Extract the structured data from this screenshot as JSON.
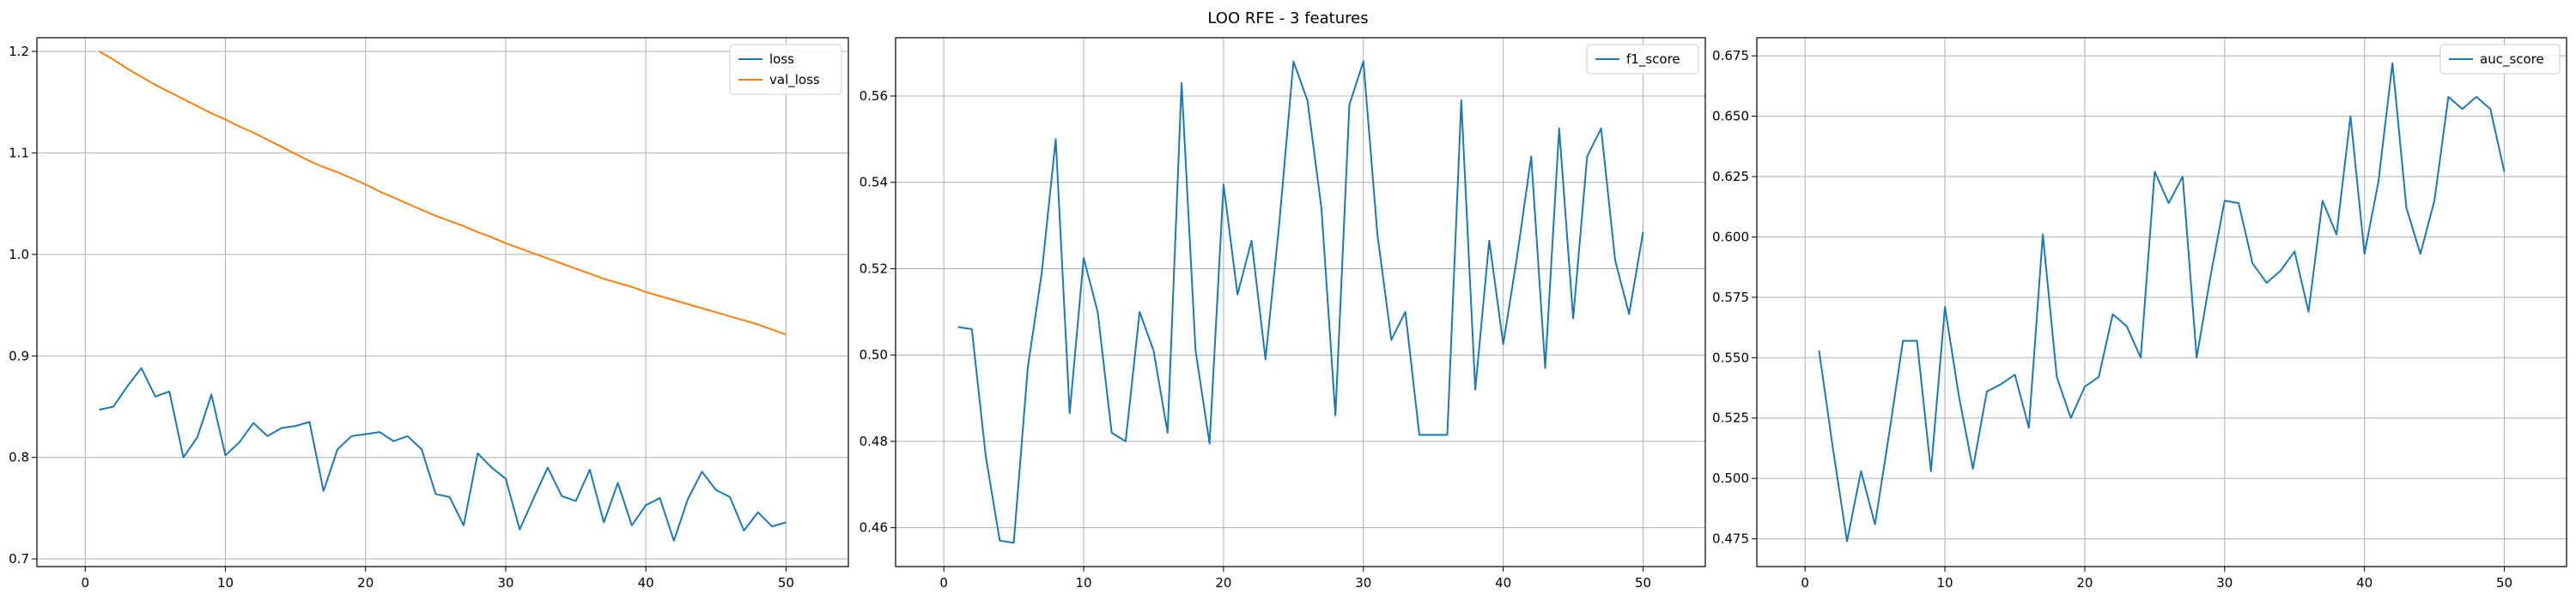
{
  "figure": {
    "title": "LOO RFE - 3 features"
  },
  "chart_data": [
    {
      "type": "line",
      "title": "",
      "xlabel": "",
      "ylabel": "",
      "xlim": [
        -3.45,
        54.45
      ],
      "ylim": [
        0.6925,
        1.2135
      ],
      "xticks": [
        0,
        10,
        20,
        30,
        40,
        50
      ],
      "yticks": [
        0.7,
        0.8,
        0.9,
        1.0,
        1.1,
        1.2
      ],
      "ytick_labels": [
        "0.7",
        "0.8",
        "0.9",
        "1.0",
        "1.1",
        "1.2"
      ],
      "grid": true,
      "legend": "top-right",
      "x": [
        1,
        2,
        3,
        4,
        5,
        6,
        7,
        8,
        9,
        10,
        11,
        12,
        13,
        14,
        15,
        16,
        17,
        18,
        19,
        20,
        21,
        22,
        23,
        24,
        25,
        26,
        27,
        28,
        29,
        30,
        31,
        32,
        33,
        34,
        35,
        36,
        37,
        38,
        39,
        40,
        41,
        42,
        43,
        44,
        45,
        46,
        47,
        48,
        49,
        50
      ],
      "series": [
        {
          "name": "loss",
          "color": "#1f77b4",
          "values": [
            0.847,
            0.85,
            0.87,
            0.888,
            0.86,
            0.865,
            0.8,
            0.82,
            0.862,
            0.802,
            0.815,
            0.834,
            0.821,
            0.829,
            0.831,
            0.835,
            0.767,
            0.808,
            0.821,
            0.823,
            0.825,
            0.816,
            0.821,
            0.808,
            0.764,
            0.761,
            0.733,
            0.804,
            0.79,
            0.779,
            0.729,
            0.76,
            0.79,
            0.762,
            0.757,
            0.788,
            0.736,
            0.775,
            0.733,
            0.753,
            0.76,
            0.718,
            0.759,
            0.786,
            0.768,
            0.761,
            0.728,
            0.746,
            0.732,
            0.736
          ]
        },
        {
          "name": "val_loss",
          "color": "#ff7f0e",
          "values": [
            1.2,
            1.192,
            1.183,
            1.175,
            1.167,
            1.16,
            1.153,
            1.146,
            1.139,
            1.133,
            1.126,
            1.12,
            1.113,
            1.106,
            1.099,
            1.092,
            1.086,
            1.081,
            1.075,
            1.069,
            1.062,
            1.056,
            1.05,
            1.044,
            1.038,
            1.033,
            1.028,
            1.022,
            1.017,
            1.011,
            1.006,
            1.001,
            0.996,
            0.991,
            0.986,
            0.981,
            0.976,
            0.972,
            0.968,
            0.963,
            0.959,
            0.955,
            0.951,
            0.947,
            0.943,
            0.939,
            0.935,
            0.931,
            0.926,
            0.921
          ]
        }
      ]
    },
    {
      "type": "line",
      "title": "",
      "xlabel": "",
      "ylabel": "",
      "xlim": [
        -3.45,
        54.45
      ],
      "ylim": [
        0.451,
        0.5735
      ],
      "xticks": [
        0,
        10,
        20,
        30,
        40,
        50
      ],
      "yticks": [
        0.46,
        0.48,
        0.5,
        0.52,
        0.54,
        0.56
      ],
      "ytick_labels": [
        "0.46",
        "0.48",
        "0.50",
        "0.52",
        "0.54",
        "0.56"
      ],
      "grid": true,
      "legend": "top-right",
      "x": [
        1,
        2,
        3,
        4,
        5,
        6,
        7,
        8,
        9,
        10,
        11,
        12,
        13,
        14,
        15,
        16,
        17,
        18,
        19,
        20,
        21,
        22,
        23,
        24,
        25,
        26,
        27,
        28,
        29,
        30,
        31,
        32,
        33,
        34,
        35,
        36,
        37,
        38,
        39,
        40,
        41,
        42,
        43,
        44,
        45,
        46,
        47,
        48,
        49,
        50
      ],
      "series": [
        {
          "name": "f1_score",
          "color": "#1f77b4",
          "values": [
            0.5065,
            0.506,
            0.4765,
            0.457,
            0.4565,
            0.497,
            0.519,
            0.55,
            0.4865,
            0.5225,
            0.51,
            0.482,
            0.48,
            0.51,
            0.501,
            0.482,
            0.563,
            0.501,
            0.4795,
            0.5395,
            0.514,
            0.5265,
            0.499,
            0.531,
            0.568,
            0.559,
            0.534,
            0.486,
            0.558,
            0.568,
            0.528,
            0.5035,
            0.51,
            0.4815,
            0.4815,
            0.4815,
            0.559,
            0.492,
            0.5265,
            0.5025,
            0.523,
            0.546,
            0.497,
            0.5525,
            0.5085,
            0.546,
            0.5525,
            0.522,
            0.5095,
            0.5285
          ]
        }
      ]
    },
    {
      "type": "line",
      "title": "",
      "xlabel": "",
      "ylabel": "",
      "xlim": [
        -3.45,
        54.45
      ],
      "ylim": [
        0.4635,
        0.6825
      ],
      "xticks": [
        0,
        10,
        20,
        30,
        40,
        50
      ],
      "yticks": [
        0.475,
        0.5,
        0.525,
        0.55,
        0.575,
        0.6,
        0.625,
        0.65,
        0.675
      ],
      "ytick_labels": [
        "0.475",
        "0.500",
        "0.525",
        "0.550",
        "0.575",
        "0.600",
        "0.625",
        "0.650",
        "0.675"
      ],
      "grid": true,
      "legend": "top-right",
      "x": [
        1,
        2,
        3,
        4,
        5,
        6,
        7,
        8,
        9,
        10,
        11,
        12,
        13,
        14,
        15,
        16,
        17,
        18,
        19,
        20,
        21,
        22,
        23,
        24,
        25,
        26,
        27,
        28,
        29,
        30,
        31,
        32,
        33,
        34,
        35,
        36,
        37,
        38,
        39,
        40,
        41,
        42,
        43,
        44,
        45,
        46,
        47,
        48,
        49,
        50
      ],
      "series": [
        {
          "name": "auc_score",
          "color": "#1f77b4",
          "values": [
            0.553,
            0.512,
            0.474,
            0.503,
            0.481,
            0.518,
            0.557,
            0.557,
            0.503,
            0.571,
            0.534,
            0.504,
            0.536,
            0.539,
            0.543,
            0.521,
            0.601,
            0.542,
            0.525,
            0.538,
            0.542,
            0.568,
            0.563,
            0.55,
            0.627,
            0.614,
            0.625,
            0.55,
            0.584,
            0.615,
            0.614,
            0.589,
            0.581,
            0.586,
            0.594,
            0.569,
            0.615,
            0.601,
            0.65,
            0.593,
            0.623,
            0.672,
            0.612,
            0.593,
            0.615,
            0.658,
            0.653,
            0.658,
            0.653,
            0.627
          ]
        }
      ]
    }
  ]
}
